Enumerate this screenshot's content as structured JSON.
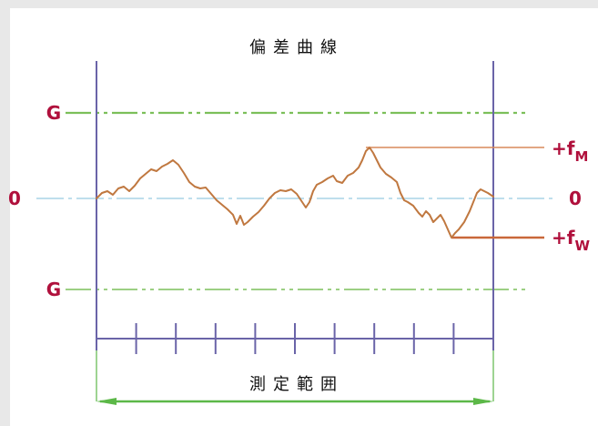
{
  "diagram": {
    "title": "偏差曲線",
    "range_label": "測定範囲",
    "limit_label_upper": "G",
    "limit_label_lower": "G",
    "zero_label_left": "0",
    "zero_label_right": "0",
    "fm_label": "+f",
    "fm_subscript": "M",
    "fw_label": "+f",
    "fw_subscript": "W",
    "tick_count": 10,
    "colors": {
      "frame": "#6a64a8",
      "limit": "#7cbf5a",
      "zero_line": "#a9d4e6",
      "curve": "#c07840",
      "marker": "#d98a5a",
      "label": "#b0103c",
      "range_arrow": "#5cb848",
      "background": "#e8e8e8"
    }
  }
}
